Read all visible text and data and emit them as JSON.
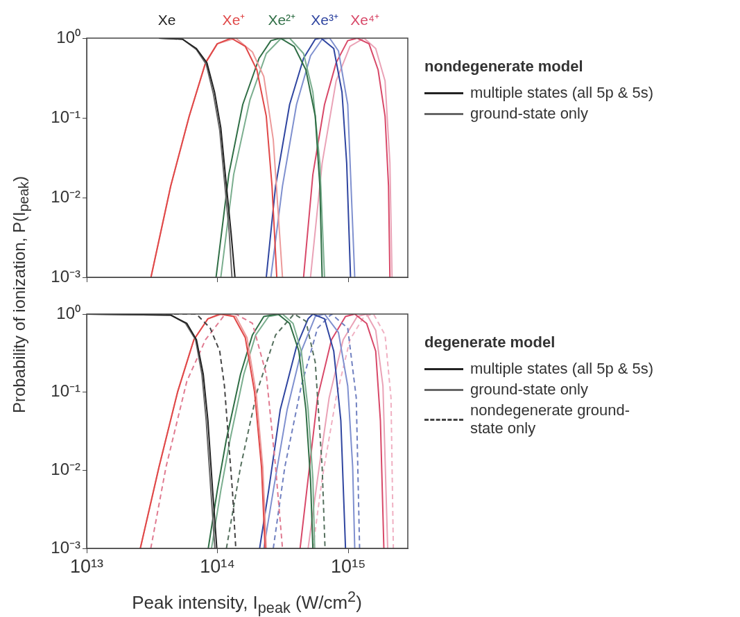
{
  "chart_data": [
    {
      "type": "line",
      "ylabel": "Probability of ionization, P(I$_{peak}$)",
      "legend_title": "nondegenerate model",
      "legend": "right",
      "log": "xy",
      "grid": false,
      "tick_labels": "y",
      "xlim": [
        10000000000000.0,
        2850000000000000.0
      ],
      "xticks": [
        {
          "value": 10000000000000.0,
          "label": null
        },
        {
          "value": 100000000000000.0,
          "label": null
        },
        {
          "value": 1000000000000000.0,
          "label": null
        }
      ],
      "ylim": [
        0.001,
        1
      ],
      "yticks": [
        {
          "value": 0.001,
          "label": "10⁻³"
        },
        {
          "value": 0.01,
          "label": "10⁻²"
        },
        {
          "value": 0.1,
          "label": "10⁻¹"
        },
        {
          "value": 1,
          "label": "10⁰"
        }
      ],
      "annotations": [
        {
          "text": "Xe",
          "x": 41000000000000.0,
          "y": 1
        },
        {
          "text": "Xe⁺",
          "x": 133000000000000.0,
          "y": 1
        },
        {
          "text": "Xe²⁺",
          "x": 310000000000000.0,
          "y": 1
        },
        {
          "text": "Xe³⁺",
          "x": 660000000000000.0,
          "y": 1
        },
        {
          "text": "Xe⁴⁺",
          "x": 1340000000000000.0,
          "y": 1
        }
      ],
      "series": [
        {
          "name": "multiple states (all 5p & 5s)",
          "color": "#222222",
          "x": [
            35700000000000.0,
            54000000000000.0,
            69000000000000.0,
            83000000000000.0,
            95000000000000.0,
            106000000000000.0,
            117000000000000.0,
            127000000000000.0,
            136000000000000.0
          ],
          "values": [
            1,
            0.97,
            0.74,
            0.49,
            0.21,
            0.075,
            0.014,
            0.0036,
            0.001
          ]
        },
        {
          "name": "ground-state only",
          "color": "#666666",
          "x": [
            35700000000000.0,
            54000000000000.0,
            69000000000000.0,
            82000000000000.0,
            93000000000000.0,
            104000000000000.0,
            114000000000000.0,
            123000000000000.0,
            129000000000000.0
          ],
          "values": [
            1,
            0.97,
            0.72,
            0.47,
            0.2,
            0.07,
            0.014,
            0.0036,
            0.001
          ]
        },
        {
          "color": "#e04848",
          "x": [
            31000000000000.0,
            43900000000000.0,
            60800000000000.0,
            81000000000000.0,
            99600000000000.0,
            127000000000000.0,
            163000000000000.0,
            200000000000000.0,
            236000000000000.0,
            261000000000000.0,
            284000000000000.0
          ],
          "values": [
            0.001,
            0.014,
            0.105,
            0.49,
            0.85,
            1,
            0.79,
            0.4,
            0.105,
            0.014,
            0.001
          ]
        },
        {
          "color": "#ec9a9a",
          "x": [
            31000000000000.0,
            43900000000000.0,
            60800000000000.0,
            81000000000000.0,
            99600000000000.0,
            138000000000000.0,
            185000000000000.0,
            226000000000000.0,
            267000000000000.0,
            314000000000000.0
          ],
          "values": [
            0.001,
            0.014,
            0.105,
            0.49,
            0.85,
            1,
            0.67,
            0.33,
            0.053,
            0.001
          ]
        },
        {
          "color": "#2f6e45",
          "x": [
            97500000000000.0,
            122000000000000.0,
            156000000000000.0,
            208000000000000.0,
            256000000000000.0,
            302000000000000.0,
            385000000000000.0,
            474000000000000.0,
            559000000000000.0,
            606000000000000.0,
            631000000000000.0
          ],
          "values": [
            0.001,
            0.0195,
            0.147,
            0.56,
            0.93,
            1,
            0.79,
            0.4,
            0.105,
            0.014,
            0.001
          ]
        },
        {
          "color": "#7aae8e",
          "x": [
            106000000000000.0,
            133000000000000.0,
            177000000000000.0,
            236000000000000.0,
            302000000000000.0,
            356000000000000.0,
            455000000000000.0,
            536000000000000.0,
            606000000000000.0,
            658000000000000.0
          ],
          "values": [
            0.001,
            0.0195,
            0.168,
            0.64,
            0.97,
            1,
            0.64,
            0.21,
            0.027,
            0.001
          ]
        },
        {
          "color": "#2f45a0",
          "x": [
            236000000000000.0,
            278000000000000.0,
            356000000000000.0,
            455000000000000.0,
            559000000000000.0,
            618000000000000.0,
            774000000000000.0,
            895000000000000.0,
            972000000000000.0,
            1040000000000000.0
          ],
          "values": [
            0.001,
            0.014,
            0.147,
            0.56,
            0.97,
            1,
            0.74,
            0.21,
            0.027,
            0.001
          ]
        },
        {
          "color": "#7f90cf",
          "x": [
            256000000000000.0,
            314000000000000.0,
            402000000000000.0,
            514000000000000.0,
            631000000000000.0,
            720000000000000.0,
            841000000000000.0,
            990000000000000.0,
            1120000000000000.0
          ],
          "values": [
            0.001,
            0.014,
            0.147,
            0.6,
            0.97,
            1,
            0.69,
            0.147,
            0.001
          ]
        },
        {
          "color": "#d84868",
          "x": [
            455000000000000.0,
            536000000000000.0,
            658000000000000.0,
            807000000000000.0,
            990000000000000.0,
            1170000000000000.0,
            1440000000000000.0,
            1690000000000000.0,
            1910000000000000.0,
            2030000000000000.0,
            2080000000000000.0
          ],
          "values": [
            0.001,
            0.0195,
            0.147,
            0.49,
            0.93,
            1,
            0.85,
            0.4,
            0.105,
            0.014,
            0.001
          ]
        },
        {
          "color": "#eaa2b6",
          "x": [
            514000000000000.0,
            631000000000000.0,
            807000000000000.0,
            1030000000000000.0,
            1320000000000000.0,
            1620000000000000.0,
            1910000000000000.0,
            2080000000000000.0,
            2160000000000000.0
          ],
          "values": [
            0.001,
            0.027,
            0.29,
            0.79,
            1,
            0.74,
            0.29,
            0.027,
            0.001
          ]
        }
      ]
    },
    {
      "type": "line",
      "xlabel": "Peak intensity, I$_{peak}$ (W/cm$^{2}$)",
      "legend_title": "degenerate model",
      "legend": "right",
      "log": "xy",
      "grid": false,
      "xlim": [
        10000000000000.0,
        2850000000000000.0
      ],
      "xticks": [
        {
          "value": 10000000000000.0,
          "label": "10¹³"
        },
        {
          "value": 100000000000000.0,
          "label": "10¹⁴"
        },
        {
          "value": 1000000000000000.0,
          "label": "10¹⁵"
        }
      ],
      "ylim": [
        0.001,
        1
      ],
      "yticks": [
        {
          "value": 0.001,
          "label": "10⁻³"
        },
        {
          "value": 0.01,
          "label": "10⁻²"
        },
        {
          "value": 0.1,
          "label": "10⁻¹"
        },
        {
          "value": 1,
          "label": "10⁰"
        }
      ],
      "series": [
        {
          "name": "multiple states (all 5p & 5s)",
          "color": "#222222",
          "x": [
            10000000000000.0,
            43900000000000.0,
            58300000000000.0,
            69000000000000.0,
            77800000000000.0,
            84500000000000.0,
            91800000000000.0,
            98800000000000.0
          ],
          "values": [
            1,
            0.97,
            0.76,
            0.47,
            0.17,
            0.043,
            0.0055,
            0.001
          ]
        },
        {
          "name": "ground-state only",
          "color": "#666666",
          "x": [
            10000000000000.0,
            43900000000000.0,
            57000000000000.0,
            68000000000000.0,
            76000000000000.0,
            82000000000000.0,
            89000000000000.0,
            95500000000000.0
          ],
          "values": [
            1,
            0.97,
            0.76,
            0.47,
            0.17,
            0.043,
            0.0055,
            0.001
          ]
        },
        {
          "name": "nondegenerate ground-state only",
          "color": "#444444",
          "line_style": "dashed",
          "x": [
            30000000000000.0,
            69000000000000.0,
            88000000000000.0,
            104000000000000.0,
            113000000000000.0,
            122000000000000.0,
            130000000000000.0,
            138000000000000.0
          ],
          "values": [
            1,
            1,
            0.66,
            0.335,
            0.12,
            0.022,
            0.0055,
            0.001
          ]
        },
        {
          "color": "#e04848",
          "x": [
            25700000000000.0,
            35700000000000.0,
            49500000000000.0,
            66000000000000.0,
            84500000000000.0,
            104000000000000.0,
            133000000000000.0,
            163000000000000.0,
            192000000000000.0,
            217000000000000.0,
            231000000000000.0
          ],
          "values": [
            0.001,
            0.011,
            0.1,
            0.47,
            0.87,
            1,
            0.93,
            0.5,
            0.1,
            0.011,
            0.001
          ]
        },
        {
          "color": "#ec9a9a",
          "x": [
            25700000000000.0,
            35700000000000.0,
            49500000000000.0,
            66000000000000.0,
            84500000000000.0,
            108000000000000.0,
            138000000000000.0,
            168000000000000.0,
            197000000000000.0,
            222000000000000.0,
            236000000000000.0
          ],
          "values": [
            0.001,
            0.011,
            0.1,
            0.47,
            0.87,
            1,
            0.93,
            0.5,
            0.1,
            0.011,
            0.001
          ]
        },
        {
          "color": "#e07a90",
          "line_style": "dashed",
          "x": [
            30900000000000.0,
            40400000000000.0,
            58300000000000.0,
            81000000000000.0,
            113000000000000.0,
            138000000000000.0,
            185000000000000.0,
            236000000000000.0,
            278000000000000.0,
            314000000000000.0
          ],
          "values": [
            0.001,
            0.011,
            0.138,
            0.47,
            0.97,
            1,
            0.76,
            0.17,
            0.011,
            0.001
          ]
        },
        {
          "color": "#2f6e45",
          "x": [
            85000000000000.0,
            99600000000000.0,
            117000000000000.0,
            150000000000000.0,
            185000000000000.0,
            226000000000000.0,
            290000000000000.0,
            356000000000000.0,
            419000000000000.0,
            474000000000000.0,
            514000000000000.0,
            536000000000000.0
          ],
          "values": [
            0.001,
            0.0055,
            0.025,
            0.17,
            0.54,
            0.93,
            1,
            0.76,
            0.335,
            0.06,
            0.0078,
            0.001
          ]
        },
        {
          "color": "#7aae8e",
          "x": [
            90000000000000.0,
            106000000000000.0,
            125000000000000.0,
            159000000000000.0,
            196000000000000.0,
            246000000000000.0,
            314000000000000.0,
            378000000000000.0,
            437000000000000.0,
            493000000000000.0,
            536000000000000.0,
            553000000000000.0
          ],
          "values": [
            0.001,
            0.0055,
            0.025,
            0.17,
            0.54,
            0.93,
            1,
            0.76,
            0.335,
            0.06,
            0.0078,
            0.001
          ]
        },
        {
          "color": "#55705e",
          "line_style": "dashed",
          "x": [
            117000000000000.0,
            150000000000000.0,
            200000000000000.0,
            278000000000000.0,
            385000000000000.0,
            474000000000000.0,
            559000000000000.0,
            631000000000000.0,
            664000000000000.0
          ],
          "values": [
            0.001,
            0.011,
            0.1,
            0.54,
            1,
            0.81,
            0.24,
            0.011,
            0.001
          ]
        },
        {
          "color": "#2f45a0",
          "x": [
            210000000000000.0,
            246000000000000.0,
            302000000000000.0,
            402000000000000.0,
            493000000000000.0,
            536000000000000.0,
            658000000000000.0,
            774000000000000.0,
            877000000000000.0,
            952000000000000.0
          ],
          "values": [
            0.001,
            0.0055,
            0.06,
            0.385,
            0.87,
            1,
            0.87,
            0.335,
            0.043,
            0.001
          ]
        },
        {
          "color": "#7f90cf",
          "x": [
            226000000000000.0,
            267000000000000.0,
            341000000000000.0,
            437000000000000.0,
            559000000000000.0,
            658000000000000.0,
            841000000000000.0,
            990000000000000.0,
            1080000000000000.0,
            1120000000000000.0
          ],
          "values": [
            0.001,
            0.0055,
            0.06,
            0.335,
            0.93,
            1,
            0.58,
            0.12,
            0.011,
            0.001
          ]
        },
        {
          "color": "#7080c0",
          "line_style": "dashed",
          "x": [
            267000000000000.0,
            327000000000000.0,
            437000000000000.0,
            582000000000000.0,
            744000000000000.0,
            990000000000000.0,
            1150000000000000.0,
            1220000000000000.0
          ],
          "values": [
            0.001,
            0.011,
            0.12,
            0.66,
            1,
            0.66,
            0.085,
            0.001
          ]
        },
        {
          "color": "#d84868",
          "x": [
            428000000000000.0,
            493000000000000.0,
            582000000000000.0,
            744000000000000.0,
            952000000000000.0,
            1120000000000000.0,
            1380000000000000.0,
            1620000000000000.0,
            1760000000000000.0,
            1870000000000000.0
          ],
          "values": [
            0.001,
            0.0078,
            0.085,
            0.47,
            0.93,
            1,
            0.76,
            0.335,
            0.043,
            0.001
          ]
        },
        {
          "color": "#eaa2b6",
          "x": [
            493000000000000.0,
            582000000000000.0,
            714000000000000.0,
            914000000000000.0,
            1170000000000000.0,
            1380000000000000.0,
            1620000000000000.0,
            1840000000000000.0,
            2000000000000000.0
          ],
          "values": [
            0.001,
            0.0078,
            0.085,
            0.47,
            0.93,
            1,
            0.62,
            0.12,
            0.001
          ]
        },
        {
          "color": "#f0b0c2",
          "line_style": "dashed",
          "x": [
            536000000000000.0,
            631000000000000.0,
            807000000000000.0,
            1030000000000000.0,
            1320000000000000.0,
            1560000000000000.0,
            1910000000000000.0,
            2120000000000000.0,
            2210000000000000.0
          ],
          "values": [
            0.001,
            0.0078,
            0.085,
            0.47,
            0.93,
            1,
            0.54,
            0.085,
            0.001
          ]
        }
      ]
    }
  ]
}
